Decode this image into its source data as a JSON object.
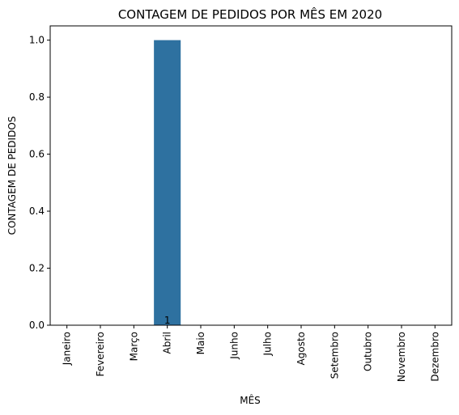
{
  "chart_data": {
    "type": "bar",
    "title": "CONTAGEM DE PEDIDOS POR MÊS EM 2020",
    "xlabel": "MÊS",
    "ylabel": "CONTAGEM DE PEDIDOS",
    "categories": [
      "Janeiro",
      "Fevereiro",
      "Março",
      "Abril",
      "Maio",
      "Junho",
      "Julho",
      "Agosto",
      "Setembro",
      "Outubro",
      "Novembro",
      "Dezembro"
    ],
    "values": [
      0,
      0,
      0,
      1,
      0,
      0,
      0,
      0,
      0,
      0,
      0,
      0
    ],
    "data_labels": [
      "",
      "",
      "",
      "1",
      "",
      "",
      "",
      "",
      "",
      "",
      "",
      ""
    ],
    "ylim": [
      0,
      1.05
    ],
    "yticks": [
      "0.0",
      "0.2",
      "0.4",
      "0.6",
      "0.8",
      "1.0"
    ],
    "bar_color": "#2e71a0",
    "grid": false,
    "legend": "none"
  }
}
